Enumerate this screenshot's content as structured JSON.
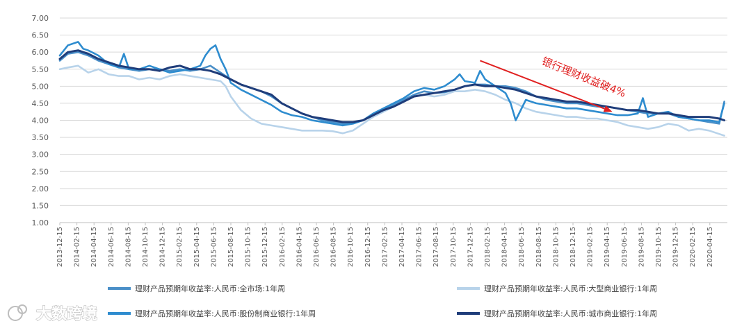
{
  "chart_data": {
    "type": "line",
    "ylim": [
      1.0,
      7.0
    ],
    "yticks": [
      1.0,
      1.5,
      2.0,
      2.5,
      3.0,
      3.5,
      4.0,
      4.5,
      5.0,
      5.5,
      6.0,
      6.5,
      7.0
    ],
    "ytick_labels": [
      "1.00",
      "1.50",
      "2.00",
      "2.50",
      "3.00",
      "3.50",
      "4.00",
      "4.50",
      "5.00",
      "5.50",
      "6.00",
      "6.50",
      "7.00"
    ],
    "x_start": "2013-12",
    "x_end": "2020-06",
    "xtick_labels": [
      "2013-12-15",
      "2014-02-15",
      "2014-04-15",
      "2014-06-15",
      "2014-08-15",
      "2014-10-15",
      "2014-12-15",
      "2015-02-15",
      "2015-04-15",
      "2015-06-15",
      "2015-08-15",
      "2015-10-15",
      "2015-12-15",
      "2016-02-15",
      "2016-04-15",
      "2016-06-15",
      "2016-08-15",
      "2016-10-15",
      "2016-12-15",
      "2017-02-15",
      "2017-04-15",
      "2017-06-15",
      "2017-08-15",
      "2017-10-15",
      "2017-12-15",
      "2018-02-15",
      "2018-04-15",
      "2018-06-15",
      "2018-08-15",
      "2018-10-15",
      "2018-12-15",
      "2019-02-15",
      "2019-04-15",
      "2019-06-15",
      "2019-08-15",
      "2019-10-15",
      "2019-12-15",
      "2020-02-15",
      "2020-04-15"
    ],
    "series": [
      {
        "name": "理财产品预期年收益率:人民币:全市场:1年周",
        "color": "#4a8fc8",
        "points": [
          [
            2013.92,
            5.75
          ],
          [
            2014.0,
            5.95
          ],
          [
            2014.1,
            6.0
          ],
          [
            2014.2,
            5.9
          ],
          [
            2014.3,
            5.75
          ],
          [
            2014.4,
            5.65
          ],
          [
            2014.5,
            5.55
          ],
          [
            2014.6,
            5.5
          ],
          [
            2014.7,
            5.45
          ],
          [
            2014.8,
            5.5
          ],
          [
            2014.9,
            5.5
          ],
          [
            2015.0,
            5.45
          ],
          [
            2015.1,
            5.5
          ],
          [
            2015.2,
            5.45
          ],
          [
            2015.3,
            5.5
          ],
          [
            2015.4,
            5.6
          ],
          [
            2015.5,
            5.4
          ],
          [
            2015.6,
            5.2
          ],
          [
            2015.7,
            5.05
          ],
          [
            2015.8,
            4.95
          ],
          [
            2015.9,
            4.85
          ],
          [
            2016.0,
            4.7
          ],
          [
            2016.1,
            4.5
          ],
          [
            2016.2,
            4.35
          ],
          [
            2016.3,
            4.2
          ],
          [
            2016.4,
            4.1
          ],
          [
            2016.5,
            4.0
          ],
          [
            2016.6,
            3.95
          ],
          [
            2016.7,
            3.9
          ],
          [
            2016.8,
            3.92
          ],
          [
            2016.9,
            4.0
          ],
          [
            2017.0,
            4.15
          ],
          [
            2017.1,
            4.3
          ],
          [
            2017.2,
            4.45
          ],
          [
            2017.3,
            4.6
          ],
          [
            2017.4,
            4.75
          ],
          [
            2017.5,
            4.85
          ],
          [
            2017.6,
            4.8
          ],
          [
            2017.7,
            4.82
          ],
          [
            2017.8,
            4.9
          ],
          [
            2017.9,
            5.0
          ],
          [
            2018.0,
            5.05
          ],
          [
            2018.1,
            5.05
          ],
          [
            2018.2,
            5.0
          ],
          [
            2018.3,
            5.0
          ],
          [
            2018.4,
            4.95
          ],
          [
            2018.5,
            4.85
          ],
          [
            2018.6,
            4.7
          ],
          [
            2018.7,
            4.6
          ],
          [
            2018.8,
            4.55
          ],
          [
            2018.9,
            4.5
          ],
          [
            2019.0,
            4.5
          ],
          [
            2019.1,
            4.45
          ],
          [
            2019.2,
            4.4
          ],
          [
            2019.3,
            4.4
          ],
          [
            2019.4,
            4.35
          ],
          [
            2019.5,
            4.3
          ],
          [
            2019.6,
            4.25
          ],
          [
            2019.7,
            4.2
          ],
          [
            2019.8,
            4.2
          ],
          [
            2019.9,
            4.2
          ],
          [
            2020.0,
            4.1
          ],
          [
            2020.1,
            4.05
          ],
          [
            2020.2,
            4.0
          ],
          [
            2020.3,
            3.95
          ],
          [
            2020.4,
            3.9
          ],
          [
            2020.45,
            4.55
          ]
        ]
      },
      {
        "name": "理财产品预期年收益率:人民币:大型商业银行:1年周",
        "color": "#b8d3ea",
        "points": [
          [
            2013.92,
            5.5
          ],
          [
            2014.0,
            5.55
          ],
          [
            2014.1,
            5.6
          ],
          [
            2014.2,
            5.4
          ],
          [
            2014.3,
            5.5
          ],
          [
            2014.4,
            5.35
          ],
          [
            2014.5,
            5.3
          ],
          [
            2014.6,
            5.3
          ],
          [
            2014.7,
            5.2
          ],
          [
            2014.8,
            5.25
          ],
          [
            2014.9,
            5.2
          ],
          [
            2015.0,
            5.3
          ],
          [
            2015.1,
            5.35
          ],
          [
            2015.2,
            5.3
          ],
          [
            2015.3,
            5.25
          ],
          [
            2015.4,
            5.2
          ],
          [
            2015.5,
            5.15
          ],
          [
            2015.55,
            5.0
          ],
          [
            2015.6,
            4.7
          ],
          [
            2015.7,
            4.3
          ],
          [
            2015.8,
            4.05
          ],
          [
            2015.9,
            3.9
          ],
          [
            2016.0,
            3.85
          ],
          [
            2016.1,
            3.8
          ],
          [
            2016.2,
            3.75
          ],
          [
            2016.3,
            3.7
          ],
          [
            2016.4,
            3.7
          ],
          [
            2016.5,
            3.7
          ],
          [
            2016.6,
            3.68
          ],
          [
            2016.7,
            3.62
          ],
          [
            2016.8,
            3.7
          ],
          [
            2016.9,
            3.9
          ],
          [
            2017.0,
            4.1
          ],
          [
            2017.1,
            4.25
          ],
          [
            2017.2,
            4.4
          ],
          [
            2017.3,
            4.55
          ],
          [
            2017.4,
            4.7
          ],
          [
            2017.5,
            4.75
          ],
          [
            2017.6,
            4.7
          ],
          [
            2017.7,
            4.75
          ],
          [
            2017.8,
            4.85
          ],
          [
            2017.9,
            4.85
          ],
          [
            2018.0,
            4.9
          ],
          [
            2018.1,
            4.85
          ],
          [
            2018.2,
            4.75
          ],
          [
            2018.3,
            4.6
          ],
          [
            2018.4,
            4.5
          ],
          [
            2018.5,
            4.35
          ],
          [
            2018.6,
            4.25
          ],
          [
            2018.7,
            4.2
          ],
          [
            2018.8,
            4.15
          ],
          [
            2018.9,
            4.1
          ],
          [
            2019.0,
            4.1
          ],
          [
            2019.1,
            4.05
          ],
          [
            2019.2,
            4.05
          ],
          [
            2019.3,
            4.0
          ],
          [
            2019.4,
            3.95
          ],
          [
            2019.5,
            3.85
          ],
          [
            2019.6,
            3.8
          ],
          [
            2019.7,
            3.75
          ],
          [
            2019.8,
            3.8
          ],
          [
            2019.9,
            3.9
          ],
          [
            2020.0,
            3.85
          ],
          [
            2020.1,
            3.7
          ],
          [
            2020.2,
            3.75
          ],
          [
            2020.3,
            3.7
          ],
          [
            2020.4,
            3.6
          ],
          [
            2020.45,
            3.55
          ]
        ]
      },
      {
        "name": "理财产品预期年收益率:人民币:股份制商业银行:1年周",
        "color": "#2e8ccf",
        "points": [
          [
            2013.92,
            5.9
          ],
          [
            2014.0,
            6.2
          ],
          [
            2014.1,
            6.3
          ],
          [
            2014.15,
            6.1
          ],
          [
            2014.2,
            6.05
          ],
          [
            2014.3,
            5.9
          ],
          [
            2014.4,
            5.65
          ],
          [
            2014.5,
            5.55
          ],
          [
            2014.55,
            5.95
          ],
          [
            2014.6,
            5.5
          ],
          [
            2014.7,
            5.5
          ],
          [
            2014.8,
            5.6
          ],
          [
            2014.9,
            5.5
          ],
          [
            2015.0,
            5.4
          ],
          [
            2015.1,
            5.45
          ],
          [
            2015.2,
            5.5
          ],
          [
            2015.3,
            5.6
          ],
          [
            2015.35,
            5.9
          ],
          [
            2015.4,
            6.1
          ],
          [
            2015.45,
            6.2
          ],
          [
            2015.5,
            5.8
          ],
          [
            2015.55,
            5.5
          ],
          [
            2015.6,
            5.1
          ],
          [
            2015.7,
            4.9
          ],
          [
            2015.8,
            4.75
          ],
          [
            2015.9,
            4.6
          ],
          [
            2016.0,
            4.45
          ],
          [
            2016.1,
            4.25
          ],
          [
            2016.2,
            4.15
          ],
          [
            2016.3,
            4.1
          ],
          [
            2016.4,
            4.0
          ],
          [
            2016.5,
            3.95
          ],
          [
            2016.6,
            3.9
          ],
          [
            2016.7,
            3.85
          ],
          [
            2016.8,
            3.9
          ],
          [
            2016.9,
            4.0
          ],
          [
            2017.0,
            4.2
          ],
          [
            2017.1,
            4.35
          ],
          [
            2017.2,
            4.5
          ],
          [
            2017.3,
            4.65
          ],
          [
            2017.4,
            4.85
          ],
          [
            2017.5,
            4.95
          ],
          [
            2017.6,
            4.9
          ],
          [
            2017.7,
            5.0
          ],
          [
            2017.8,
            5.2
          ],
          [
            2017.85,
            5.35
          ],
          [
            2017.9,
            5.15
          ],
          [
            2018.0,
            5.1
          ],
          [
            2018.05,
            5.45
          ],
          [
            2018.1,
            5.2
          ],
          [
            2018.2,
            5.0
          ],
          [
            2018.3,
            4.8
          ],
          [
            2018.35,
            4.5
          ],
          [
            2018.4,
            4.0
          ],
          [
            2018.5,
            4.6
          ],
          [
            2018.6,
            4.5
          ],
          [
            2018.7,
            4.45
          ],
          [
            2018.8,
            4.4
          ],
          [
            2018.9,
            4.35
          ],
          [
            2019.0,
            4.35
          ],
          [
            2019.1,
            4.3
          ],
          [
            2019.2,
            4.25
          ],
          [
            2019.3,
            4.2
          ],
          [
            2019.4,
            4.15
          ],
          [
            2019.5,
            4.15
          ],
          [
            2019.6,
            4.2
          ],
          [
            2019.65,
            4.65
          ],
          [
            2019.7,
            4.1
          ],
          [
            2019.8,
            4.2
          ],
          [
            2019.9,
            4.25
          ],
          [
            2020.0,
            4.1
          ],
          [
            2020.1,
            4.05
          ],
          [
            2020.2,
            4.0
          ],
          [
            2020.3,
            4.0
          ],
          [
            2020.4,
            3.95
          ],
          [
            2020.45,
            4.5
          ]
        ]
      },
      {
        "name": "理财产品预期年收益率:人民币:城市商业银行:1年周",
        "color": "#1f3d7a",
        "points": [
          [
            2013.92,
            5.8
          ],
          [
            2014.0,
            6.0
          ],
          [
            2014.1,
            6.05
          ],
          [
            2014.2,
            5.95
          ],
          [
            2014.3,
            5.8
          ],
          [
            2014.4,
            5.7
          ],
          [
            2014.5,
            5.6
          ],
          [
            2014.6,
            5.55
          ],
          [
            2014.7,
            5.5
          ],
          [
            2014.8,
            5.5
          ],
          [
            2014.9,
            5.45
          ],
          [
            2015.0,
            5.55
          ],
          [
            2015.1,
            5.6
          ],
          [
            2015.2,
            5.5
          ],
          [
            2015.3,
            5.5
          ],
          [
            2015.4,
            5.45
          ],
          [
            2015.5,
            5.35
          ],
          [
            2015.6,
            5.2
          ],
          [
            2015.7,
            5.05
          ],
          [
            2015.8,
            4.95
          ],
          [
            2015.9,
            4.85
          ],
          [
            2016.0,
            4.75
          ],
          [
            2016.1,
            4.5
          ],
          [
            2016.2,
            4.35
          ],
          [
            2016.3,
            4.2
          ],
          [
            2016.4,
            4.1
          ],
          [
            2016.5,
            4.05
          ],
          [
            2016.6,
            4.0
          ],
          [
            2016.7,
            3.95
          ],
          [
            2016.8,
            3.95
          ],
          [
            2016.9,
            4.0
          ],
          [
            2017.0,
            4.15
          ],
          [
            2017.1,
            4.3
          ],
          [
            2017.2,
            4.4
          ],
          [
            2017.3,
            4.55
          ],
          [
            2017.4,
            4.7
          ],
          [
            2017.5,
            4.75
          ],
          [
            2017.6,
            4.8
          ],
          [
            2017.7,
            4.85
          ],
          [
            2017.8,
            4.9
          ],
          [
            2017.9,
            5.0
          ],
          [
            2018.0,
            5.05
          ],
          [
            2018.1,
            5.0
          ],
          [
            2018.2,
            5.0
          ],
          [
            2018.3,
            4.95
          ],
          [
            2018.4,
            4.9
          ],
          [
            2018.5,
            4.8
          ],
          [
            2018.6,
            4.7
          ],
          [
            2018.7,
            4.65
          ],
          [
            2018.8,
            4.6
          ],
          [
            2018.9,
            4.55
          ],
          [
            2019.0,
            4.55
          ],
          [
            2019.1,
            4.5
          ],
          [
            2019.2,
            4.45
          ],
          [
            2019.3,
            4.4
          ],
          [
            2019.4,
            4.35
          ],
          [
            2019.5,
            4.3
          ],
          [
            2019.6,
            4.3
          ],
          [
            2019.7,
            4.25
          ],
          [
            2019.8,
            4.2
          ],
          [
            2019.9,
            4.2
          ],
          [
            2020.0,
            4.15
          ],
          [
            2020.1,
            4.1
          ],
          [
            2020.2,
            4.1
          ],
          [
            2020.3,
            4.1
          ],
          [
            2020.4,
            4.05
          ],
          [
            2020.45,
            4.0
          ]
        ]
      }
    ],
    "annotation": {
      "text": "银行理财收益破4%",
      "color": "#e02020",
      "arrow_from": [
        2018.05,
        5.75
      ],
      "arrow_to": [
        2019.35,
        4.25
      ]
    }
  },
  "legend": [
    {
      "label": "理财产品预期年收益率:人民币:全市场:1年周"
    },
    {
      "label": "理财产品预期年收益率:人民币:大型商业银行:1年周"
    },
    {
      "label": "理财产品预期年收益率:人民币:股份制商业银行:1年周"
    },
    {
      "label": "理财产品预期年收益率:人民币:城市商业银行:1年周"
    }
  ],
  "watermark": {
    "text": "大数跨境"
  }
}
